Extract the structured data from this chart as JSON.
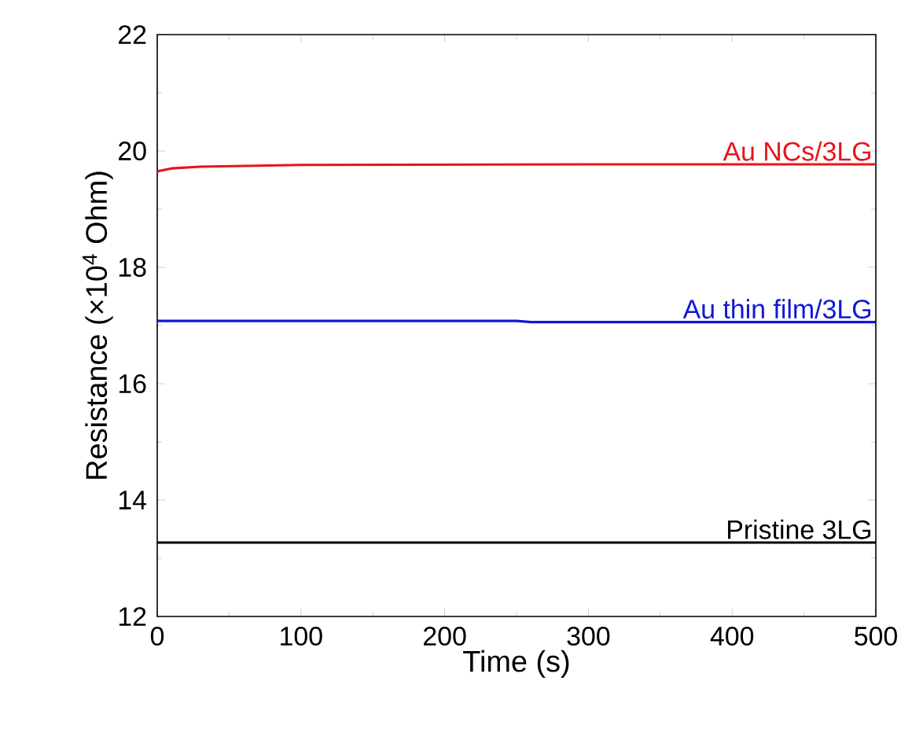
{
  "chart_data": {
    "type": "line",
    "xlabel": "Time (s)",
    "ylabel": "Resistance (×10$^{4}$ Ohm)",
    "xlim": [
      0,
      500
    ],
    "ylim": [
      12,
      22
    ],
    "xticks": [
      0,
      100,
      200,
      300,
      400,
      500
    ],
    "yticks": [
      12,
      14,
      16,
      18,
      20,
      22
    ],
    "legend": false,
    "grid": false,
    "marker": "none",
    "line_style": "solid",
    "series": [
      {
        "name": "Au NCs/3LG",
        "color": "#e8141b",
        "x": [
          0,
          10,
          30,
          100,
          300,
          500
        ],
        "values": [
          19.65,
          19.7,
          19.73,
          19.76,
          19.77,
          19.77
        ]
      },
      {
        "name": "Au thin film/3LG",
        "color": "#1018d8",
        "x": [
          0,
          250,
          260,
          500
        ],
        "values": [
          17.08,
          17.08,
          17.06,
          17.06
        ]
      },
      {
        "name": "Pristine 3LG",
        "color": "#000000",
        "x": [
          0,
          500
        ],
        "values": [
          13.27,
          13.27
        ]
      }
    ]
  }
}
